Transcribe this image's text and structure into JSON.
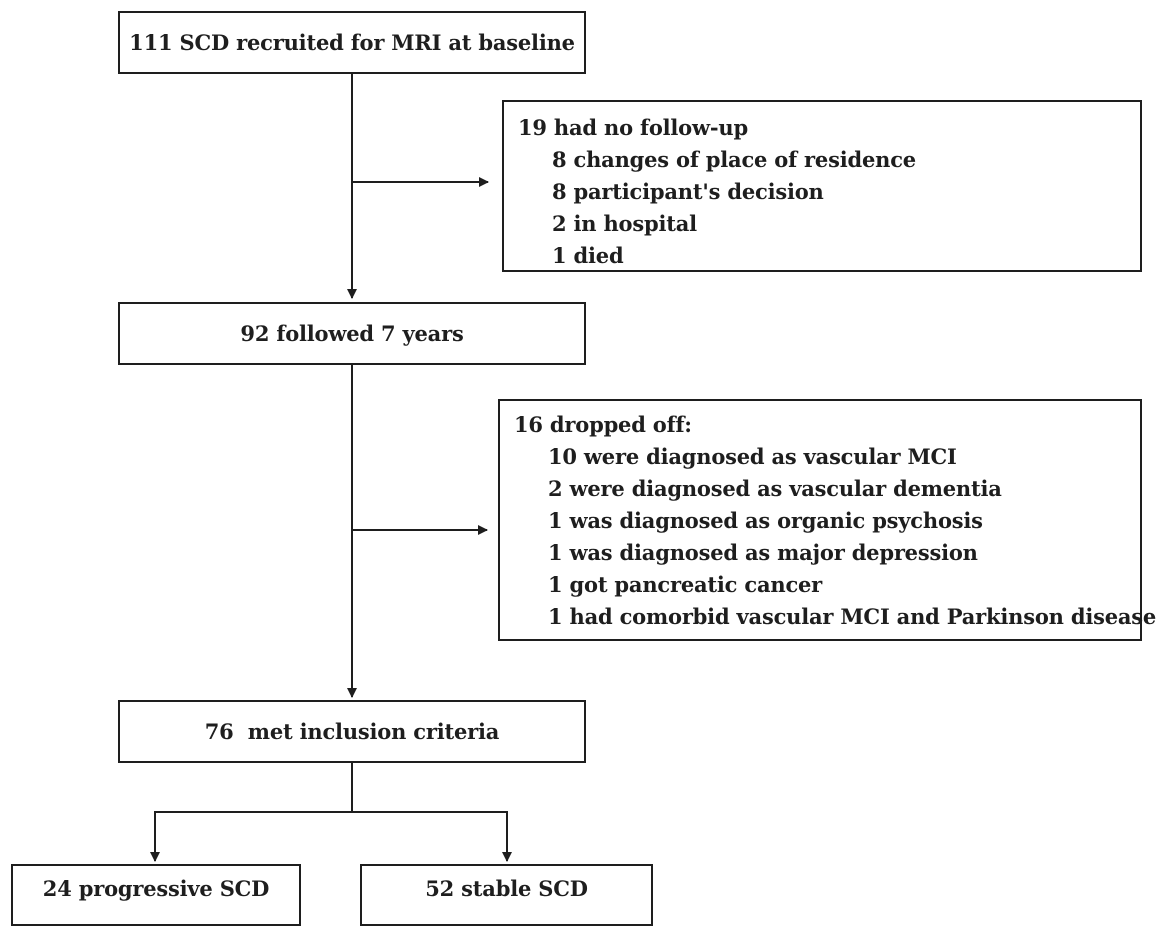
{
  "baseline": {
    "label": "111 SCD recruited for MRI at baseline"
  },
  "exclusion_1": {
    "heading": "19 had no follow-up",
    "items": [
      "8 changes of place of residence",
      "8 participant's decision",
      "2 in hospital",
      "1 died"
    ]
  },
  "followed": {
    "label": "92 followed 7 years"
  },
  "exclusion_2": {
    "heading": "16 dropped off:",
    "items": [
      "10 were diagnosed as vascular MCI",
      "2 were diagnosed as vascular dementia",
      "1 was diagnosed as organic psychosis",
      "1 was diagnosed as major depression",
      "1 got pancreatic cancer",
      "1 had comorbid vascular MCI and Parkinson disease"
    ]
  },
  "included": {
    "label": "76  met inclusion criteria"
  },
  "outcomes": {
    "progressive": "24 progressive SCD",
    "stable": "52 stable SCD"
  }
}
